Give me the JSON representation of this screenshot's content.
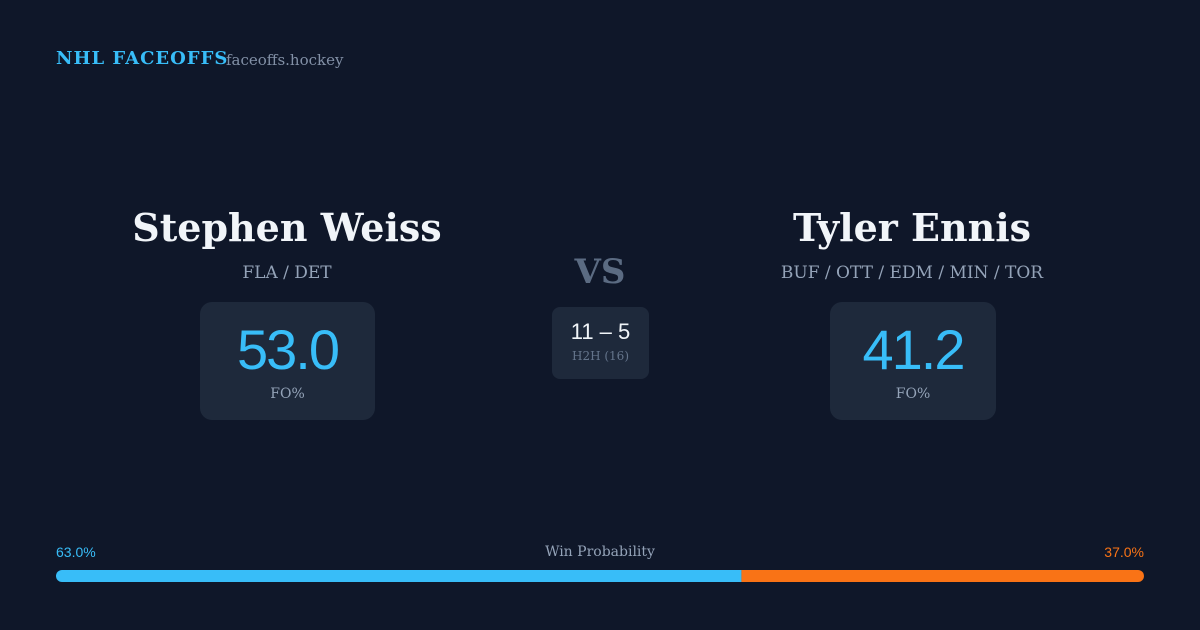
{
  "header": {
    "brand": "NHL FACEOFFS",
    "site": "faceoffs.hockey"
  },
  "players": [
    {
      "name": "Stephen Weiss",
      "teams": "FLA / DET",
      "fo_pct": "53.0",
      "fo_label": "FO%"
    },
    {
      "name": "Tyler Ennis",
      "teams": "BUF / OTT / EDM / MIN / TOR",
      "fo_pct": "41.2",
      "fo_label": "FO%"
    }
  ],
  "vs": "VS",
  "h2h": {
    "score": "11 – 5",
    "label": "H2H (16)"
  },
  "win_probability": {
    "label": "Win Probability",
    "left": {
      "value": 63.0,
      "label": "63.0%",
      "color": "#38bdf8"
    },
    "right": {
      "value": 37.0,
      "label": "37.0%",
      "color": "#f97316"
    }
  }
}
